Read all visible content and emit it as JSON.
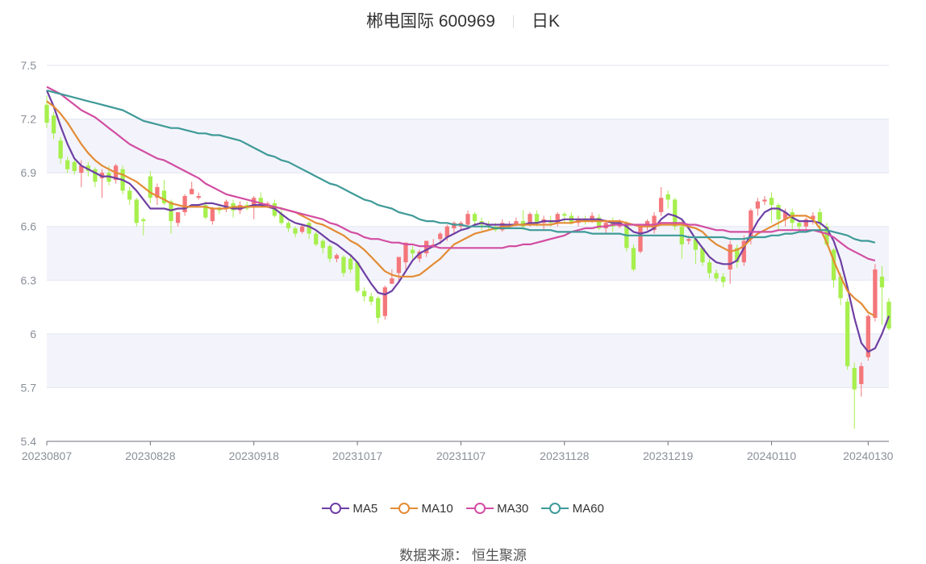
{
  "header": {
    "stock_name": "郴电国际 600969",
    "period": "日K"
  },
  "source": {
    "label": "数据来源：",
    "value": "恒生聚源"
  },
  "colors": {
    "up": "#f4777b",
    "down": "#a6ef4d",
    "ma5": "#6e3fa3",
    "ma10": "#e38b35",
    "ma30": "#d24ea2",
    "ma60": "#3f9a98",
    "band": "#f3f4fb",
    "grid": "#e2e5f0",
    "axis": "#8a8f99"
  },
  "chart_data": {
    "type": "candlestick",
    "title": "郴电国际 600969 日K",
    "ylim": [
      5.4,
      7.5
    ],
    "y_ticks": [
      {
        "value": 7.5,
        "label": "7.5"
      },
      {
        "value": 7.2,
        "label": "7.2"
      },
      {
        "value": 6.9,
        "label": "6.9"
      },
      {
        "value": 6.6,
        "label": "6.6"
      },
      {
        "value": 6.3,
        "label": "6.3"
      },
      {
        "value": 6.0,
        "label": "6"
      },
      {
        "value": 5.7,
        "label": "5.7"
      },
      {
        "value": 5.4,
        "label": "5.4"
      }
    ],
    "x_ticks": [
      {
        "index": 0,
        "label": "20230807"
      },
      {
        "index": 15,
        "label": "20230828"
      },
      {
        "index": 30,
        "label": "20230918"
      },
      {
        "index": 45,
        "label": "20231017"
      },
      {
        "index": 60,
        "label": "20231107"
      },
      {
        "index": 75,
        "label": "20231128"
      },
      {
        "index": 90,
        "label": "20231219"
      },
      {
        "index": 105,
        "label": "20240110"
      },
      {
        "index": 119,
        "label": "20240130"
      }
    ],
    "candles": [
      [
        7.28,
        7.18,
        7.33,
        7.15
      ],
      [
        7.22,
        7.12,
        7.24,
        7.09
      ],
      [
        7.08,
        6.98,
        7.1,
        6.95
      ],
      [
        6.97,
        6.92,
        6.99,
        6.9
      ],
      [
        6.96,
        6.91,
        6.97,
        6.89
      ],
      [
        6.9,
        6.94,
        6.97,
        6.82
      ],
      [
        6.94,
        6.91,
        6.96,
        6.88
      ],
      [
        6.92,
        6.85,
        6.93,
        6.82
      ],
      [
        6.87,
        6.9,
        6.92,
        6.76
      ],
      [
        6.9,
        6.85,
        6.94,
        6.83
      ],
      [
        6.86,
        6.94,
        6.95,
        6.84
      ],
      [
        6.92,
        6.8,
        6.94,
        6.78
      ],
      [
        6.8,
        6.75,
        6.82,
        6.72
      ],
      [
        6.75,
        6.62,
        6.76,
        6.6
      ],
      [
        6.64,
        6.63,
        6.65,
        6.55
      ],
      [
        6.88,
        6.76,
        6.91,
        6.73
      ],
      [
        6.76,
        6.82,
        6.84,
        6.72
      ],
      [
        6.8,
        6.73,
        6.86,
        6.72
      ],
      [
        6.74,
        6.63,
        6.75,
        6.56
      ],
      [
        6.62,
        6.68,
        6.68,
        6.6
      ],
      [
        6.68,
        6.77,
        6.78,
        6.66
      ],
      [
        6.78,
        6.81,
        6.85,
        6.78
      ],
      [
        6.76,
        6.77,
        6.79,
        6.75
      ],
      [
        6.72,
        6.65,
        6.74,
        6.64
      ],
      [
        6.63,
        6.7,
        6.71,
        6.61
      ],
      [
        6.7,
        6.69,
        6.72,
        6.67
      ],
      [
        6.7,
        6.74,
        6.75,
        6.68
      ],
      [
        6.73,
        6.69,
        6.75,
        6.65
      ],
      [
        6.69,
        6.72,
        6.74,
        6.67
      ],
      [
        6.72,
        6.7,
        6.74,
        6.69
      ],
      [
        6.71,
        6.76,
        6.77,
        6.64
      ],
      [
        6.76,
        6.72,
        6.79,
        6.71
      ],
      [
        6.73,
        6.73,
        6.74,
        6.71
      ],
      [
        6.73,
        6.66,
        6.75,
        6.65
      ],
      [
        6.67,
        6.62,
        6.71,
        6.61
      ],
      [
        6.62,
        6.59,
        6.63,
        6.57
      ],
      [
        6.59,
        6.56,
        6.6,
        6.54
      ],
      [
        6.57,
        6.6,
        6.61,
        6.56
      ],
      [
        6.62,
        6.56,
        6.63,
        6.53
      ],
      [
        6.56,
        6.5,
        6.57,
        6.49
      ],
      [
        6.52,
        6.48,
        6.53,
        6.45
      ],
      [
        6.49,
        6.42,
        6.5,
        6.4
      ],
      [
        6.42,
        6.44,
        6.45,
        6.4
      ],
      [
        6.43,
        6.34,
        6.44,
        6.32
      ],
      [
        6.42,
        6.36,
        6.44,
        6.34
      ],
      [
        6.4,
        6.24,
        6.4,
        6.23
      ],
      [
        6.24,
        6.21,
        6.26,
        6.18
      ],
      [
        6.21,
        6.18,
        6.23,
        6.16
      ],
      [
        6.2,
        6.09,
        6.21,
        6.06
      ],
      [
        6.1,
        6.26,
        6.27,
        6.08
      ],
      [
        6.28,
        6.31,
        6.36,
        6.28
      ],
      [
        6.34,
        6.43,
        6.43,
        6.29
      ],
      [
        6.4,
        6.51,
        6.51,
        6.36
      ],
      [
        6.47,
        6.45,
        6.49,
        6.42
      ],
      [
        6.42,
        6.46,
        6.47,
        6.4
      ],
      [
        6.45,
        6.52,
        6.52,
        6.43
      ],
      [
        6.5,
        6.5,
        6.53,
        6.48
      ],
      [
        6.53,
        6.56,
        6.57,
        6.5
      ],
      [
        6.54,
        6.6,
        6.61,
        6.52
      ],
      [
        6.59,
        6.62,
        6.63,
        6.56
      ],
      [
        6.6,
        6.62,
        6.63,
        6.58
      ],
      [
        6.61,
        6.67,
        6.69,
        6.6
      ],
      [
        6.67,
        6.63,
        6.68,
        6.61
      ],
      [
        6.63,
        6.61,
        6.65,
        6.58
      ],
      [
        6.61,
        6.6,
        6.63,
        6.58
      ],
      [
        6.6,
        6.58,
        6.62,
        6.57
      ],
      [
        6.58,
        6.62,
        6.64,
        6.57
      ],
      [
        6.61,
        6.61,
        6.63,
        6.59
      ],
      [
        6.61,
        6.63,
        6.65,
        6.6
      ],
      [
        6.63,
        6.6,
        6.69,
        6.58
      ],
      [
        6.61,
        6.67,
        6.68,
        6.6
      ],
      [
        6.67,
        6.62,
        6.69,
        6.6
      ],
      [
        6.62,
        6.64,
        6.66,
        6.58
      ],
      [
        6.63,
        6.62,
        6.66,
        6.6
      ],
      [
        6.62,
        6.67,
        6.68,
        6.6
      ],
      [
        6.67,
        6.66,
        6.68,
        6.62
      ],
      [
        6.66,
        6.62,
        6.68,
        6.61
      ],
      [
        6.62,
        6.64,
        6.66,
        6.6
      ],
      [
        6.64,
        6.63,
        6.66,
        6.61
      ],
      [
        6.64,
        6.66,
        6.68,
        6.62
      ],
      [
        6.65,
        6.59,
        6.67,
        6.58
      ],
      [
        6.59,
        6.62,
        6.64,
        6.56
      ],
      [
        6.63,
        6.6,
        6.65,
        6.57
      ],
      [
        6.6,
        6.63,
        6.64,
        6.59
      ],
      [
        6.62,
        6.48,
        6.63,
        6.46
      ],
      [
        6.48,
        6.36,
        6.5,
        6.35
      ],
      [
        6.46,
        6.6,
        6.61,
        6.45
      ],
      [
        6.6,
        6.63,
        6.64,
        6.58
      ],
      [
        6.58,
        6.66,
        6.68,
        6.56
      ],
      [
        6.68,
        6.76,
        6.82,
        6.66
      ],
      [
        6.78,
        6.75,
        6.8,
        6.7
      ],
      [
        6.75,
        6.6,
        6.76,
        6.58
      ],
      [
        6.6,
        6.5,
        6.64,
        6.42
      ],
      [
        6.52,
        6.53,
        6.55,
        6.5
      ],
      [
        6.53,
        6.47,
        6.54,
        6.39
      ],
      [
        6.48,
        6.4,
        6.49,
        6.38
      ],
      [
        6.4,
        6.34,
        6.42,
        6.31
      ],
      [
        6.34,
        6.31,
        6.36,
        6.29
      ],
      [
        6.32,
        6.29,
        6.34,
        6.26
      ],
      [
        6.36,
        6.5,
        6.52,
        6.28
      ],
      [
        6.48,
        6.4,
        6.5,
        6.37
      ],
      [
        6.4,
        6.52,
        6.55,
        6.38
      ],
      [
        6.53,
        6.69,
        6.7,
        6.5
      ],
      [
        6.7,
        6.74,
        6.76,
        6.66
      ],
      [
        6.74,
        6.75,
        6.77,
        6.72
      ],
      [
        6.76,
        6.72,
        6.79,
        6.62
      ],
      [
        6.72,
        6.64,
        6.73,
        6.58
      ],
      [
        6.64,
        6.68,
        6.7,
        6.6
      ],
      [
        6.68,
        6.62,
        6.7,
        6.58
      ],
      [
        6.62,
        6.6,
        6.64,
        6.57
      ],
      [
        6.6,
        6.64,
        6.65,
        6.58
      ],
      [
        6.64,
        6.66,
        6.68,
        6.61
      ],
      [
        6.68,
        6.62,
        6.7,
        6.58
      ],
      [
        6.6,
        6.5,
        6.62,
        6.49
      ],
      [
        6.47,
        6.3,
        6.48,
        6.26
      ],
      [
        6.32,
        6.2,
        6.34,
        6.16
      ],
      [
        6.18,
        5.82,
        6.2,
        5.8
      ],
      [
        5.81,
        5.69,
        5.84,
        5.47
      ],
      [
        5.72,
        5.82,
        5.84,
        5.65
      ],
      [
        5.87,
        6.1,
        6.11,
        5.85
      ],
      [
        6.09,
        6.36,
        6.39,
        6.07
      ],
      [
        6.32,
        6.26,
        6.38,
        6.05
      ],
      [
        6.18,
        6.03,
        6.2,
        6.02
      ]
    ],
    "series": [
      {
        "name": "MA5",
        "values": [
          7.36,
          7.27,
          7.16,
          7.06,
          6.98,
          6.94,
          6.92,
          6.9,
          6.88,
          6.88,
          6.87,
          6.86,
          6.84,
          6.8,
          6.75,
          6.7,
          6.7,
          6.7,
          6.69,
          6.7,
          6.7,
          6.72,
          6.72,
          6.73,
          6.73,
          6.72,
          6.71,
          6.7,
          6.7,
          6.71,
          6.72,
          6.72,
          6.71,
          6.7,
          6.67,
          6.64,
          6.62,
          6.61,
          6.6,
          6.58,
          6.55,
          6.52,
          6.5,
          6.47,
          6.44,
          6.4,
          6.34,
          6.28,
          6.23,
          6.22,
          6.24,
          6.29,
          6.35,
          6.41,
          6.45,
          6.47,
          6.49,
          6.51,
          6.54,
          6.56,
          6.58,
          6.59,
          6.61,
          6.62,
          6.61,
          6.61,
          6.61,
          6.61,
          6.61,
          6.61,
          6.62,
          6.62,
          6.63,
          6.63,
          6.63,
          6.64,
          6.64,
          6.64,
          6.64,
          6.64,
          6.64,
          6.63,
          6.62,
          6.62,
          6.6,
          6.57,
          6.56,
          6.57,
          6.59,
          6.64,
          6.67,
          6.66,
          6.64,
          6.59,
          6.53,
          6.48,
          6.43,
          6.4,
          6.39,
          6.39,
          6.41,
          6.48,
          6.56,
          6.63,
          6.68,
          6.7,
          6.7,
          6.68,
          6.65,
          6.63,
          6.63,
          6.63,
          6.62,
          6.59,
          6.52,
          6.41,
          6.26,
          6.09,
          5.95,
          5.9,
          5.92,
          6.0,
          6.1
        ]
      },
      {
        "name": "MA10",
        "values": [
          7.3,
          7.27,
          7.23,
          7.18,
          7.12,
          7.06,
          7.01,
          6.97,
          6.94,
          6.92,
          6.9,
          6.89,
          6.87,
          6.85,
          6.82,
          6.79,
          6.77,
          6.75,
          6.73,
          6.72,
          6.71,
          6.71,
          6.71,
          6.71,
          6.7,
          6.7,
          6.7,
          6.71,
          6.71,
          6.71,
          6.71,
          6.71,
          6.71,
          6.71,
          6.7,
          6.69,
          6.68,
          6.66,
          6.64,
          6.62,
          6.61,
          6.59,
          6.57,
          6.55,
          6.52,
          6.5,
          6.47,
          6.43,
          6.39,
          6.35,
          6.33,
          6.32,
          6.32,
          6.32,
          6.33,
          6.36,
          6.39,
          6.42,
          6.46,
          6.5,
          6.52,
          6.54,
          6.56,
          6.57,
          6.58,
          6.59,
          6.6,
          6.6,
          6.61,
          6.61,
          6.61,
          6.61,
          6.61,
          6.61,
          6.62,
          6.62,
          6.62,
          6.63,
          6.63,
          6.63,
          6.63,
          6.63,
          6.63,
          6.63,
          6.62,
          6.61,
          6.6,
          6.6,
          6.6,
          6.61,
          6.61,
          6.61,
          6.61,
          6.6,
          6.59,
          6.57,
          6.53,
          6.5,
          6.48,
          6.46,
          6.47,
          6.49,
          6.53,
          6.56,
          6.58,
          6.6,
          6.62,
          6.64,
          6.66,
          6.66,
          6.66,
          6.64,
          6.59,
          6.51,
          6.41,
          6.32,
          6.24,
          6.2,
          6.17,
          6.12,
          6.1
        ]
      },
      {
        "name": "MA30",
        "values": [
          7.38,
          7.36,
          7.34,
          7.31,
          7.28,
          7.25,
          7.23,
          7.21,
          7.18,
          7.15,
          7.12,
          7.09,
          7.06,
          7.04,
          7.02,
          7.0,
          6.98,
          6.97,
          6.95,
          6.93,
          6.91,
          6.89,
          6.87,
          6.84,
          6.82,
          6.8,
          6.78,
          6.77,
          6.76,
          6.75,
          6.74,
          6.73,
          6.72,
          6.71,
          6.7,
          6.69,
          6.68,
          6.67,
          6.66,
          6.65,
          6.64,
          6.62,
          6.61,
          6.59,
          6.57,
          6.56,
          6.54,
          6.53,
          6.53,
          6.52,
          6.51,
          6.51,
          6.5,
          6.5,
          6.49,
          6.49,
          6.49,
          6.48,
          6.48,
          6.48,
          6.48,
          6.48,
          6.48,
          6.48,
          6.48,
          6.48,
          6.48,
          6.49,
          6.49,
          6.5,
          6.5,
          6.51,
          6.52,
          6.53,
          6.54,
          6.55,
          6.57,
          6.58,
          6.59,
          6.59,
          6.6,
          6.6,
          6.61,
          6.61,
          6.61,
          6.61,
          6.61,
          6.61,
          6.61,
          6.62,
          6.62,
          6.62,
          6.62,
          6.61,
          6.61,
          6.6,
          6.59,
          6.58,
          6.58,
          6.57,
          6.57,
          6.57,
          6.57,
          6.57,
          6.57,
          6.57,
          6.58,
          6.58,
          6.58,
          6.58,
          6.58,
          6.58,
          6.57,
          6.56,
          6.54,
          6.51,
          6.48,
          6.46,
          6.44,
          6.42,
          6.41
        ]
      },
      {
        "name": "MA60",
        "values": [
          7.36,
          7.35,
          7.34,
          7.33,
          7.32,
          7.31,
          7.3,
          7.29,
          7.28,
          7.27,
          7.26,
          7.25,
          7.23,
          7.21,
          7.19,
          7.18,
          7.17,
          7.16,
          7.15,
          7.15,
          7.14,
          7.13,
          7.12,
          7.12,
          7.11,
          7.11,
          7.1,
          7.09,
          7.08,
          7.06,
          7.04,
          7.02,
          7.0,
          6.99,
          6.97,
          6.96,
          6.94,
          6.92,
          6.9,
          6.88,
          6.86,
          6.84,
          6.83,
          6.81,
          6.79,
          6.77,
          6.75,
          6.74,
          6.72,
          6.71,
          6.7,
          6.68,
          6.67,
          6.66,
          6.64,
          6.63,
          6.63,
          6.62,
          6.62,
          6.61,
          6.61,
          6.6,
          6.6,
          6.6,
          6.6,
          6.59,
          6.59,
          6.59,
          6.59,
          6.59,
          6.58,
          6.58,
          6.58,
          6.58,
          6.57,
          6.57,
          6.57,
          6.57,
          6.57,
          6.56,
          6.56,
          6.56,
          6.56,
          6.56,
          6.55,
          6.55,
          6.55,
          6.55,
          6.55,
          6.55,
          6.55,
          6.55,
          6.55,
          6.54,
          6.54,
          6.54,
          6.54,
          6.54,
          6.54,
          6.53,
          6.53,
          6.53,
          6.54,
          6.54,
          6.54,
          6.55,
          6.55,
          6.56,
          6.56,
          6.57,
          6.57,
          6.58,
          6.58,
          6.58,
          6.57,
          6.56,
          6.55,
          6.53,
          6.52,
          6.52,
          6.51
        ]
      }
    ]
  }
}
